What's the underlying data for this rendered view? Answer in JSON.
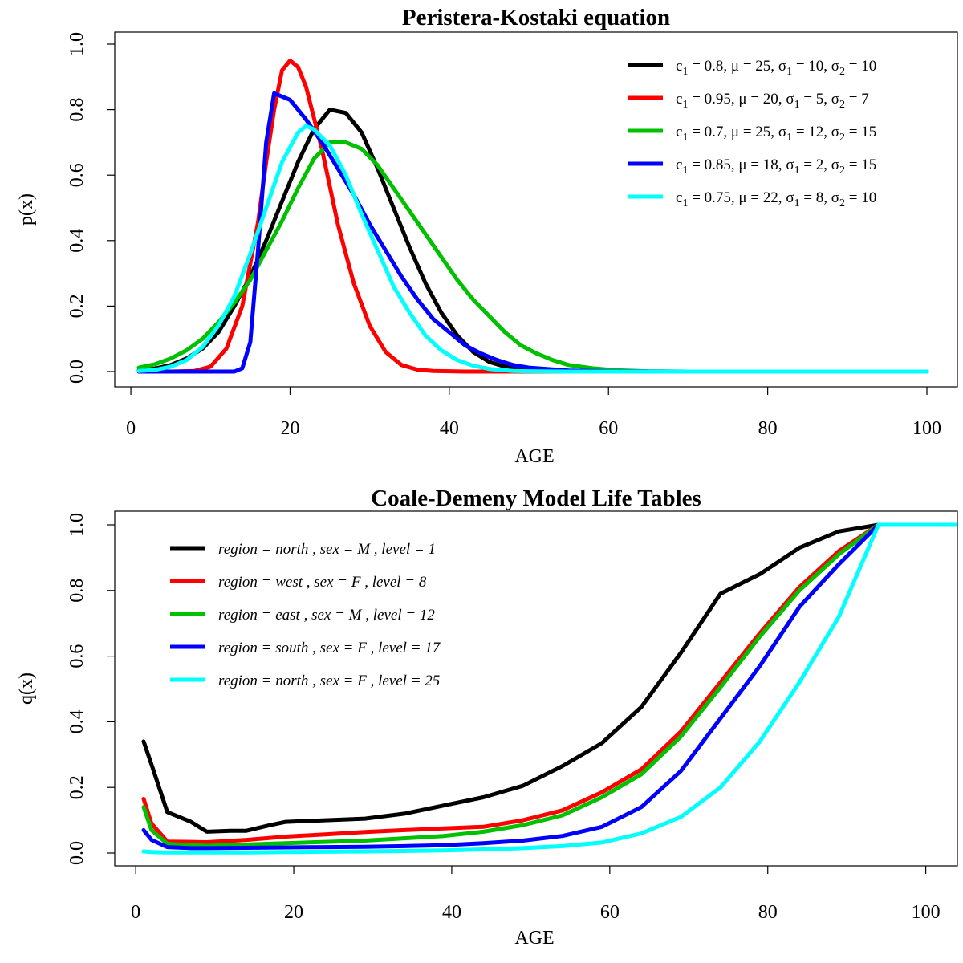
{
  "chart_data": [
    {
      "type": "line",
      "title": "Peristera-Kostaki equation",
      "xlabel": "AGE",
      "ylabel": "p(x)",
      "xlim": [
        1,
        100
      ],
      "ylim": [
        0,
        1.0
      ],
      "x_ticks": [
        "0",
        "20",
        "40",
        "60",
        "80",
        "100"
      ],
      "y_ticks": [
        "0.0",
        "0.2",
        "0.4",
        "0.6",
        "0.8",
        "1.0"
      ],
      "legend_position": "top-right",
      "series": [
        {
          "name": "c1 = 0.8, μ = 25, σ1 = 10, σ2 = 10",
          "color": "#000000",
          "x": [
            1,
            3,
            5,
            7,
            9,
            11,
            13,
            15,
            17,
            19,
            21,
            23,
            25,
            27,
            29,
            31,
            33,
            35,
            37,
            39,
            41,
            43,
            45,
            47,
            50,
            55,
            60,
            70,
            80,
            90,
            100
          ],
          "y": [
            0.004,
            0.009,
            0.02,
            0.04,
            0.07,
            0.12,
            0.2,
            0.29,
            0.4,
            0.52,
            0.64,
            0.74,
            0.8,
            0.79,
            0.73,
            0.62,
            0.5,
            0.38,
            0.27,
            0.18,
            0.11,
            0.06,
            0.03,
            0.015,
            0.005,
            0.001,
            0,
            0,
            0,
            0,
            0
          ]
        },
        {
          "name": "c1 = 0.95, μ = 20, σ1 = 5, σ2 = 7",
          "color": "#ff0000",
          "x": [
            1,
            5,
            8,
            10,
            12,
            14,
            16,
            17,
            18,
            19,
            20,
            21,
            22,
            24,
            26,
            28,
            30,
            32,
            34,
            36,
            38,
            42,
            50,
            60,
            70,
            80,
            90,
            100
          ],
          "y": [
            0,
            0,
            0.002,
            0.015,
            0.07,
            0.2,
            0.46,
            0.64,
            0.8,
            0.92,
            0.95,
            0.93,
            0.87,
            0.68,
            0.45,
            0.27,
            0.14,
            0.06,
            0.02,
            0.006,
            0.002,
            0,
            0,
            0,
            0,
            0,
            0,
            0
          ]
        },
        {
          "name": "c1 = 0.7, μ = 25, σ1 = 12, σ2 = 15",
          "color": "#00c000",
          "x": [
            1,
            3,
            5,
            7,
            9,
            11,
            13,
            15,
            17,
            19,
            21,
            23,
            25,
            27,
            29,
            31,
            33,
            35,
            37,
            39,
            41,
            43,
            45,
            47,
            49,
            51,
            53,
            55,
            58,
            61,
            65,
            70,
            80,
            90,
            100
          ],
          "y": [
            0.012,
            0.022,
            0.04,
            0.065,
            0.1,
            0.15,
            0.21,
            0.28,
            0.37,
            0.46,
            0.56,
            0.65,
            0.7,
            0.7,
            0.68,
            0.63,
            0.56,
            0.49,
            0.42,
            0.35,
            0.28,
            0.22,
            0.17,
            0.12,
            0.08,
            0.055,
            0.035,
            0.02,
            0.01,
            0.004,
            0.001,
            0,
            0,
            0,
            0
          ]
        },
        {
          "name": "c1 = 0.85, μ = 18, σ1 = 2, σ2 = 15",
          "color": "#0000ff",
          "x": [
            1,
            5,
            10,
            13,
            14,
            15,
            16,
            17,
            18,
            20,
            22,
            24,
            26,
            28,
            30,
            32,
            34,
            36,
            38,
            40,
            42,
            44,
            46,
            48,
            50,
            55,
            60,
            70,
            80,
            90,
            100
          ],
          "y": [
            0,
            0,
            0,
            0,
            0.01,
            0.09,
            0.38,
            0.7,
            0.85,
            0.83,
            0.77,
            0.7,
            0.62,
            0.54,
            0.45,
            0.37,
            0.29,
            0.22,
            0.16,
            0.12,
            0.08,
            0.055,
            0.035,
            0.02,
            0.012,
            0.003,
            0.001,
            0,
            0,
            0,
            0
          ]
        },
        {
          "name": "c1 = 0.75, μ = 22, σ1 = 8, σ2 = 10",
          "color": "#00ffff",
          "x": [
            1,
            3,
            5,
            7,
            9,
            11,
            13,
            15,
            17,
            19,
            21,
            22,
            23,
            25,
            27,
            29,
            31,
            33,
            35,
            37,
            39,
            41,
            43,
            45,
            48,
            50,
            55,
            60,
            70,
            80,
            90,
            100
          ],
          "y": [
            0.002,
            0.005,
            0.015,
            0.035,
            0.075,
            0.14,
            0.23,
            0.36,
            0.5,
            0.64,
            0.73,
            0.75,
            0.74,
            0.69,
            0.6,
            0.48,
            0.37,
            0.26,
            0.18,
            0.11,
            0.065,
            0.035,
            0.018,
            0.008,
            0.002,
            0.001,
            0,
            0,
            0,
            0,
            0,
            0
          ]
        }
      ]
    },
    {
      "type": "line",
      "title": "Coale-Demeny Model Life Tables",
      "xlabel": "AGE",
      "ylabel": "q(x)",
      "xlim": [
        1,
        104
      ],
      "ylim": [
        0,
        1.0
      ],
      "x_ticks": [
        "0",
        "20",
        "40",
        "60",
        "80",
        "100"
      ],
      "y_ticks": [
        "0.0",
        "0.2",
        "0.4",
        "0.6",
        "0.8",
        "1.0"
      ],
      "legend_position": "top-left",
      "series": [
        {
          "name": "region = north , sex = M , level = 1",
          "color": "#000000",
          "x": [
            1,
            2,
            4,
            7,
            9,
            12,
            14,
            17,
            19,
            24,
            29,
            34,
            39,
            44,
            49,
            54,
            59,
            64,
            69,
            74,
            79,
            84,
            89,
            94,
            99,
            104
          ],
          "y": [
            0.34,
            0.27,
            0.125,
            0.095,
            0.065,
            0.068,
            0.068,
            0.085,
            0.095,
            0.1,
            0.105,
            0.12,
            0.145,
            0.17,
            0.205,
            0.265,
            0.335,
            0.445,
            0.61,
            0.79,
            0.85,
            0.93,
            0.98,
            1.0,
            1.0,
            1.0
          ]
        },
        {
          "name": "region = west , sex = F , level = 8",
          "color": "#ff0000",
          "x": [
            1,
            2,
            4,
            7,
            9,
            14,
            19,
            24,
            29,
            34,
            39,
            44,
            49,
            54,
            59,
            64,
            69,
            74,
            79,
            84,
            89,
            94,
            99,
            104
          ],
          "y": [
            0.165,
            0.09,
            0.035,
            0.034,
            0.033,
            0.04,
            0.05,
            0.057,
            0.064,
            0.07,
            0.075,
            0.08,
            0.1,
            0.13,
            0.185,
            0.255,
            0.37,
            0.52,
            0.67,
            0.81,
            0.92,
            1.0,
            1.0,
            1.0
          ]
        },
        {
          "name": "region = east , sex = M , level = 12",
          "color": "#00c000",
          "x": [
            1,
            2,
            4,
            7,
            9,
            14,
            19,
            24,
            29,
            34,
            39,
            44,
            49,
            54,
            59,
            64,
            69,
            74,
            79,
            84,
            89,
            94,
            99,
            104
          ],
          "y": [
            0.14,
            0.07,
            0.028,
            0.024,
            0.022,
            0.026,
            0.03,
            0.034,
            0.038,
            0.045,
            0.052,
            0.065,
            0.085,
            0.115,
            0.17,
            0.24,
            0.355,
            0.505,
            0.66,
            0.8,
            0.91,
            1.0,
            1.0,
            1.0
          ]
        },
        {
          "name": "region = south , sex = F , level = 17",
          "color": "#0000ff",
          "x": [
            1,
            2,
            4,
            7,
            9,
            14,
            19,
            24,
            29,
            34,
            39,
            44,
            49,
            54,
            59,
            64,
            69,
            74,
            79,
            84,
            89,
            94,
            99,
            104
          ],
          "y": [
            0.07,
            0.04,
            0.018,
            0.015,
            0.015,
            0.016,
            0.017,
            0.018,
            0.019,
            0.021,
            0.024,
            0.03,
            0.038,
            0.052,
            0.08,
            0.14,
            0.25,
            0.41,
            0.57,
            0.75,
            0.88,
            1.0,
            1.0,
            1.0
          ]
        },
        {
          "name": "region = north , sex = F , level = 25",
          "color": "#00ffff",
          "x": [
            1,
            2,
            4,
            9,
            14,
            19,
            24,
            29,
            34,
            39,
            44,
            49,
            54,
            59,
            64,
            69,
            74,
            79,
            84,
            89,
            94,
            99,
            104
          ],
          "y": [
            0.005,
            0.003,
            0.002,
            0.002,
            0.002,
            0.003,
            0.004,
            0.005,
            0.006,
            0.008,
            0.011,
            0.015,
            0.021,
            0.032,
            0.06,
            0.11,
            0.2,
            0.34,
            0.52,
            0.72,
            1.0,
            1.0,
            1.0
          ]
        }
      ]
    }
  ]
}
